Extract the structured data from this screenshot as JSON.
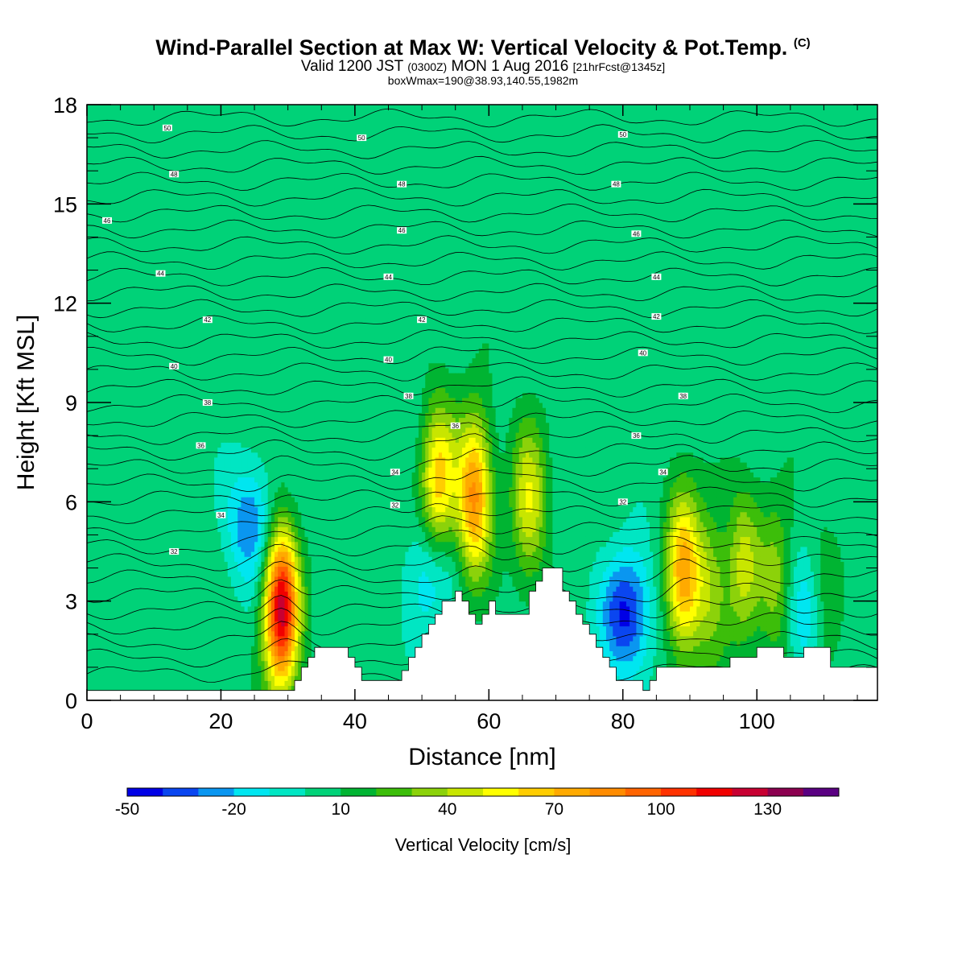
{
  "header": {
    "title": "Wind-Parallel Section at Max W: Vertical Velocity & Pot.Temp.",
    "copyright": "(C)",
    "valid_prefix": "Valid 1200 JST",
    "valid_utc": "(0300Z)",
    "valid_date": "MON 1 Aug 2016",
    "forecast": "[21hrFcst@1345z]",
    "box_info": "boxWmax=190@38.93,140.55,1982m"
  },
  "chart_data": {
    "type": "heatmap",
    "xlabel": "Distance [nm]",
    "ylabel": "Height [Kft MSL]",
    "xlim": [
      0,
      118
    ],
    "ylim": [
      0,
      18
    ],
    "x_ticks": [
      "0",
      "20",
      "40",
      "60",
      "80",
      "100"
    ],
    "y_ticks": [
      "0",
      "3",
      "6",
      "9",
      "12",
      "15",
      "18"
    ],
    "background_w": 5,
    "colorbar": {
      "label": "Vertical Velocity [cm/s]",
      "tick_labels": [
        "-50",
        "-20",
        "10",
        "40",
        "70",
        "100",
        "130"
      ],
      "tick_values": [
        -50,
        -20,
        10,
        40,
        70,
        100,
        130
      ],
      "levels": [
        -50,
        -40,
        -30,
        -20,
        -10,
        0,
        10,
        20,
        30,
        40,
        50,
        60,
        70,
        80,
        90,
        100,
        110,
        120,
        130,
        140,
        150
      ],
      "colors": [
        "#0000e6",
        "#0a46f0",
        "#0a96f0",
        "#00e6f0",
        "#00e6c3",
        "#00d278",
        "#00b432",
        "#3cbe0a",
        "#8cd20a",
        "#c8e600",
        "#ffff00",
        "#ffcd00",
        "#ffaa00",
        "#ff8c00",
        "#ff6400",
        "#ff3200",
        "#f00000",
        "#c80032",
        "#8c0050",
        "#5a0082"
      ]
    },
    "updraft_cells": [
      {
        "x": 29.0,
        "z": 2.8,
        "peak_w": 120
      },
      {
        "x": 52.5,
        "z": 6.5,
        "peak_w": 62
      },
      {
        "x": 57.8,
        "z": 6.2,
        "peak_w": 78
      },
      {
        "x": 66.0,
        "z": 6.0,
        "peak_w": 45
      },
      {
        "x": 89.0,
        "z": 3.8,
        "peak_w": 70
      },
      {
        "x": 93.0,
        "z": 3.5,
        "peak_w": 30
      },
      {
        "x": 98.0,
        "z": 4.0,
        "peak_w": 38
      },
      {
        "x": 103.0,
        "z": 3.5,
        "peak_w": 32
      },
      {
        "x": 110.0,
        "z": 2.5,
        "peak_w": 22
      }
    ],
    "downdraft_cells": [
      {
        "x": 24.5,
        "z": 5.3,
        "peak_w": -35
      },
      {
        "x": 80.5,
        "z": 2.6,
        "peak_w": -48
      },
      {
        "x": 51.5,
        "z": 3.9,
        "peak_w": -28
      },
      {
        "x": 107.5,
        "z": 2.5,
        "peak_w": -28
      }
    ],
    "terrain": [
      [
        0,
        0.3
      ],
      [
        30,
        0.3
      ],
      [
        31,
        0.6
      ],
      [
        32,
        1.0
      ],
      [
        33,
        1.3
      ],
      [
        34,
        1.6
      ],
      [
        38,
        1.6
      ],
      [
        39,
        1.3
      ],
      [
        40,
        1.0
      ],
      [
        41,
        0.6
      ],
      [
        46,
        0.6
      ],
      [
        47,
        0.9
      ],
      [
        48,
        1.3
      ],
      [
        49,
        1.6
      ],
      [
        50,
        2.0
      ],
      [
        51,
        2.3
      ],
      [
        52,
        2.6
      ],
      [
        53,
        3.0
      ],
      [
        55,
        3.3
      ],
      [
        56,
        3.0
      ],
      [
        57,
        2.6
      ],
      [
        58,
        2.3
      ],
      [
        59,
        2.6
      ],
      [
        60,
        3.0
      ],
      [
        61,
        2.6
      ],
      [
        65,
        2.6
      ],
      [
        66,
        3.3
      ],
      [
        67,
        3.6
      ],
      [
        68,
        4.0
      ],
      [
        70,
        4.0
      ],
      [
        71,
        3.3
      ],
      [
        72,
        3.0
      ],
      [
        73,
        2.6
      ],
      [
        74,
        2.3
      ],
      [
        75,
        2.0
      ],
      [
        76,
        1.6
      ],
      [
        77,
        1.3
      ],
      [
        78,
        1.0
      ],
      [
        79,
        0.6
      ],
      [
        82,
        0.6
      ],
      [
        83,
        0.3
      ],
      [
        84,
        0.6
      ],
      [
        85,
        1.0
      ],
      [
        95,
        1.0
      ],
      [
        96,
        1.3
      ],
      [
        99,
        1.3
      ],
      [
        100,
        1.6
      ],
      [
        103,
        1.6
      ],
      [
        104,
        1.3
      ],
      [
        106,
        1.3
      ],
      [
        107,
        1.6
      ],
      [
        110,
        1.6
      ],
      [
        111,
        1.0
      ],
      [
        117,
        1.0
      ],
      [
        118,
        0.6
      ]
    ],
    "theta_labels": [
      {
        "x": 13,
        "z": 4.5,
        "text": "32"
      },
      {
        "x": 46,
        "z": 5.9,
        "text": "32"
      },
      {
        "x": 80,
        "z": 6.0,
        "text": "32"
      },
      {
        "x": 20,
        "z": 5.6,
        "text": "34"
      },
      {
        "x": 46,
        "z": 6.9,
        "text": "34"
      },
      {
        "x": 86,
        "z": 6.9,
        "text": "34"
      },
      {
        "x": 17,
        "z": 7.7,
        "text": "36"
      },
      {
        "x": 55,
        "z": 8.3,
        "text": "36"
      },
      {
        "x": 82,
        "z": 8.0,
        "text": "36"
      },
      {
        "x": 18,
        "z": 9.0,
        "text": "38"
      },
      {
        "x": 48,
        "z": 9.2,
        "text": "38"
      },
      {
        "x": 89,
        "z": 9.2,
        "text": "38"
      },
      {
        "x": 13,
        "z": 10.1,
        "text": "40"
      },
      {
        "x": 45,
        "z": 10.3,
        "text": "40"
      },
      {
        "x": 83,
        "z": 10.5,
        "text": "40"
      },
      {
        "x": 18,
        "z": 11.5,
        "text": "42"
      },
      {
        "x": 50,
        "z": 11.5,
        "text": "42"
      },
      {
        "x": 85,
        "z": 11.6,
        "text": "42"
      },
      {
        "x": 11,
        "z": 12.9,
        "text": "44"
      },
      {
        "x": 45,
        "z": 12.8,
        "text": "44"
      },
      {
        "x": 85,
        "z": 12.8,
        "text": "44"
      },
      {
        "x": 3,
        "z": 14.5,
        "text": "46"
      },
      {
        "x": 47,
        "z": 14.2,
        "text": "46"
      },
      {
        "x": 82,
        "z": 14.1,
        "text": "46"
      },
      {
        "x": 13,
        "z": 15.9,
        "text": "48"
      },
      {
        "x": 47,
        "z": 15.6,
        "text": "48"
      },
      {
        "x": 79,
        "z": 15.6,
        "text": "48"
      },
      {
        "x": 12,
        "z": 17.3,
        "text": "50"
      },
      {
        "x": 41,
        "z": 17.0,
        "text": "50"
      },
      {
        "x": 80,
        "z": 17.1,
        "text": "50"
      }
    ]
  }
}
